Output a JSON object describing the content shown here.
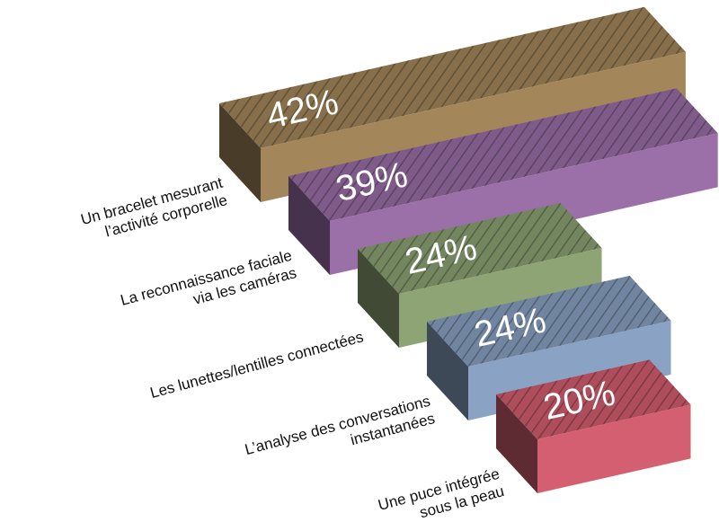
{
  "chart_data": {
    "type": "bar3d",
    "categories": [
      "Un bracelet mesurant\nl’activité corporelle",
      "La reconnaissance faciale\nvia les caméras",
      "Les lunettes/lentilles connectées",
      "L’analyse des conversations\ninstantanées",
      "Une puce intégrée\nsous la peau"
    ],
    "values": [
      42,
      39,
      24,
      24,
      20
    ],
    "value_labels": [
      "42%",
      "39%",
      "24%",
      "24%",
      "20%"
    ],
    "colors": [
      "#a3875a",
      "#9b6fa8",
      "#8ea474",
      "#8aa2c4",
      "#d45f70"
    ]
  }
}
